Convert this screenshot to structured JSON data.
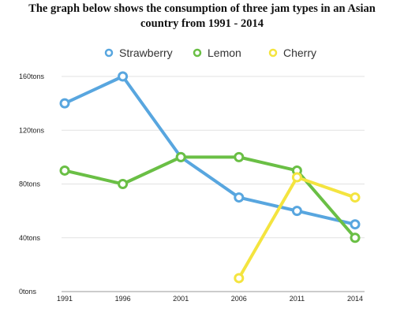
{
  "chart_data": {
    "type": "line",
    "title_line1": "The graph below shows the consumption of three jam types in an Asian",
    "title_line2": "country from 1991 - 2014",
    "categories": [
      "1991",
      "1996",
      "2001",
      "2006",
      "2011",
      "2014"
    ],
    "y_ticks": [
      "0tons",
      "40tons",
      "80tons",
      "120tons",
      "160tons"
    ],
    "ylim": [
      0,
      160
    ],
    "grid": "horizontal",
    "legend_position": "top",
    "series": [
      {
        "name": "Strawberry",
        "color": "#58a6df",
        "values": [
          140,
          160,
          100,
          70,
          60,
          50
        ]
      },
      {
        "name": "Lemon",
        "color": "#6abf45",
        "values": [
          90,
          80,
          100,
          100,
          90,
          40
        ]
      },
      {
        "name": "Cherry",
        "color": "#f4e43f",
        "values": [
          null,
          null,
          null,
          10,
          85,
          70
        ]
      }
    ]
  }
}
